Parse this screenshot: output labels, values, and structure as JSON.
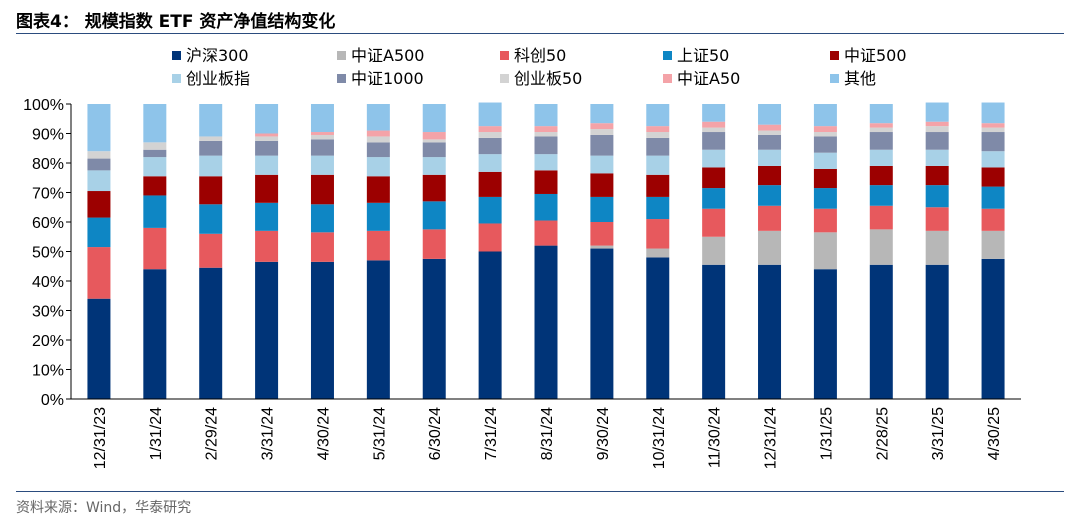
{
  "header": {
    "title": "图表4：  规模指数 ETF 资产净值结构变化"
  },
  "footer": {
    "source": "资料来源：Wind，华泰研究"
  },
  "chart_data": {
    "type": "bar",
    "stacked": true,
    "percent": true,
    "categories": [
      "12/31/23",
      "1/31/24",
      "2/29/24",
      "3/31/24",
      "4/30/24",
      "5/31/24",
      "6/30/24",
      "7/31/24",
      "8/31/24",
      "9/30/24",
      "10/31/24",
      "11/30/24",
      "12/31/24",
      "1/31/25",
      "2/28/25",
      "3/31/25",
      "4/30/25"
    ],
    "y_ticks": [
      "0%",
      "10%",
      "20%",
      "30%",
      "40%",
      "50%",
      "60%",
      "70%",
      "80%",
      "90%",
      "100%"
    ],
    "ylim": [
      0,
      100
    ],
    "grid": false,
    "legend_position": "top",
    "series": [
      {
        "name": "沪深300",
        "color": "#003478",
        "values": [
          34,
          44,
          44.5,
          46.5,
          46.5,
          47,
          47.5,
          50,
          52,
          51,
          48,
          45.5,
          45.5,
          44,
          45.5,
          45.5,
          47.5
        ]
      },
      {
        "name": "中证A500",
        "color": "#b7b7b7",
        "values": [
          0,
          0,
          0,
          0,
          0,
          0,
          0,
          0,
          0,
          1,
          3,
          9.5,
          11.5,
          12.5,
          12,
          11.5,
          9.5
        ]
      },
      {
        "name": "科创50",
        "color": "#e7595d",
        "values": [
          17.5,
          14,
          11.5,
          10.5,
          10,
          10,
          10,
          9.5,
          8.5,
          8,
          10,
          9.5,
          8.5,
          8,
          8,
          8,
          7.5
        ]
      },
      {
        "name": "上证50",
        "color": "#0e86c4",
        "values": [
          10,
          11,
          10,
          9.5,
          9.5,
          9.5,
          9.5,
          9,
          9,
          8.5,
          7.5,
          7,
          7,
          7,
          7,
          7.5,
          7.5
        ]
      },
      {
        "name": "中证500",
        "color": "#9c0000",
        "values": [
          9,
          6.5,
          9.5,
          9.5,
          10,
          9,
          9,
          8.5,
          8,
          8,
          7.5,
          7,
          6.5,
          6.5,
          6.5,
          6.5,
          6.5
        ]
      },
      {
        "name": "创业板指",
        "color": "#a8d1e7",
        "values": [
          7,
          6.5,
          7,
          6.5,
          6.5,
          6.5,
          6,
          6,
          5.5,
          6,
          6.5,
          6,
          5.5,
          5.5,
          5.5,
          5.5,
          5.5
        ]
      },
      {
        "name": "中证1000",
        "color": "#7f8aa8",
        "values": [
          4,
          2.5,
          5,
          5,
          5.5,
          5,
          5,
          5.5,
          6,
          7,
          6,
          6,
          5,
          5.5,
          6,
          6,
          6.5
        ]
      },
      {
        "name": "创业板50",
        "color": "#d3d3d3",
        "values": [
          2.5,
          2.5,
          1.5,
          1.5,
          1.5,
          2,
          1,
          2,
          1.5,
          2,
          2,
          1.5,
          1.5,
          1.5,
          1.5,
          2,
          1.5
        ]
      },
      {
        "name": "中证A50",
        "color": "#f4a3a8",
        "values": [
          0,
          0,
          0,
          1,
          1,
          2,
          2.5,
          2,
          2,
          2,
          2,
          2,
          2,
          2,
          1.5,
          1.5,
          1.5
        ]
      },
      {
        "name": "其他",
        "color": "#8ec4ea",
        "values": [
          16,
          13,
          11,
          10,
          9.5,
          9,
          9.5,
          8,
          7.5,
          6.5,
          7.5,
          6,
          7,
          7.5,
          6.5,
          6.5,
          7
        ]
      }
    ]
  }
}
